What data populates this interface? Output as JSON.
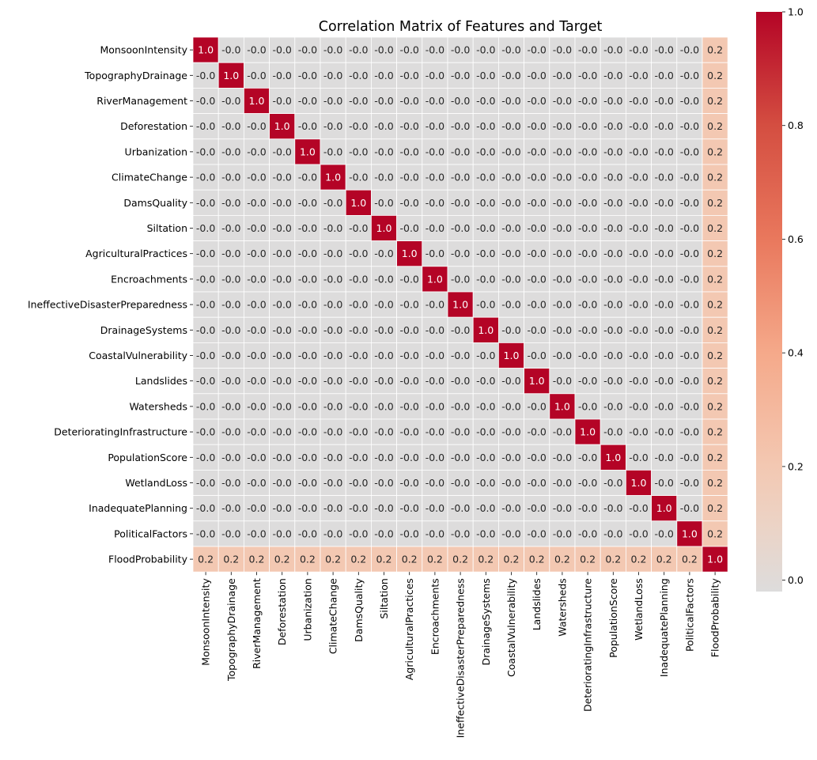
{
  "chart_data": {
    "type": "heatmap",
    "title": "Correlation Matrix of Features and Target",
    "labels": [
      "MonsoonIntensity",
      "TopographyDrainage",
      "RiverManagement",
      "Deforestation",
      "Urbanization",
      "ClimateChange",
      "DamsQuality",
      "Siltation",
      "AgriculturalPractices",
      "Encroachments",
      "IneffectiveDisasterPreparedness",
      "DrainageSystems",
      "CoastalVulnerability",
      "Landslides",
      "Watersheds",
      "DeterioratingInfrastructure",
      "PopulationScore",
      "WetlandLoss",
      "InadequatePlanning",
      "PoliticalFactors",
      "FloodProbability"
    ],
    "diagonal_value": 1.0,
    "feature_feature_value": -0.0,
    "feature_target_value": 0.2,
    "value_format": "one decimal",
    "colormap": "coolwarm",
    "center": 0.0,
    "vmin": -0.02,
    "vmax": 1.0,
    "colorbar_ticks": [
      "0.0",
      "0.2",
      "0.4",
      "0.6",
      "0.8",
      "1.0"
    ],
    "colors": {
      "zero": "#dddcdc",
      "target_corr": "#f3c8b2",
      "diagonal": "#b40426"
    }
  }
}
